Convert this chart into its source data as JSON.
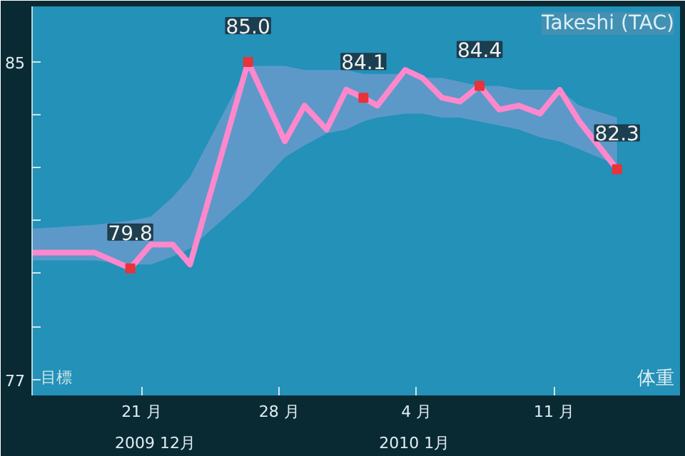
{
  "chart_data": {
    "type": "line",
    "title": "Takeshi (TAC)",
    "ylabel": "体重",
    "annotations": [
      "目標",
      "2009 12月",
      "2010 1月"
    ],
    "x": [
      "2009-12-15T10:00",
      "2009-12-18T14:00",
      "2009-12-20T10:00",
      "2009-12-21T11:00",
      "2009-12-22T14:00",
      "2009-12-23T11:00",
      "2009-12-26T10:00",
      "2009-12-28T07:00",
      "2009-12-29T07:00",
      "2009-12-30T10:00",
      "2009-12-31T10:00",
      "2010-01-01T07:00",
      "2010-01-02T00:00",
      "2010-01-03T10:00",
      "2010-01-04T07:00",
      "2010-01-05T07:00",
      "2010-01-06T05:00",
      "2010-01-07T05:00",
      "2010-01-08T05:00",
      "2010-01-09T05:00",
      "2010-01-10T07:00",
      "2010-01-11T07:00",
      "2010-01-12T07:00",
      "2010-01-14T05:00"
    ],
    "series": [
      {
        "color": "#ff88cc",
        "line_style": "solid",
        "values": [
          80.2,
          80.2,
          79.8,
          80.4,
          80.4,
          79.9,
          85.0,
          83.0,
          83.9,
          83.3,
          84.3,
          84.1,
          83.9,
          84.8,
          84.6,
          84.1,
          84.0,
          84.4,
          83.8,
          83.9,
          83.7,
          84.3,
          83.5,
          82.3
        ],
        "lower": [
          80.0,
          80.0,
          79.9,
          79.9,
          80.1,
          80.3,
          81.6,
          82.6,
          82.9,
          83.2,
          83.3,
          83.5,
          83.6,
          83.7,
          83.7,
          83.6,
          83.6,
          83.5,
          83.4,
          83.3,
          83.1,
          83.0,
          82.8,
          82.4
        ],
        "upper": [
          80.8,
          80.9,
          81.0,
          81.1,
          81.6,
          82.1,
          84.9,
          84.9,
          84.8,
          84.8,
          84.8,
          84.7,
          84.7,
          84.7,
          84.6,
          84.6,
          84.5,
          84.4,
          84.4,
          84.3,
          84.3,
          84.3,
          83.9,
          83.6
        ],
        "value_labels": [
          null,
          null,
          "79.8",
          null,
          null,
          null,
          "85.0",
          null,
          null,
          null,
          null,
          "84.1",
          null,
          null,
          null,
          null,
          null,
          "84.4",
          null,
          null,
          null,
          null,
          null,
          "82.3"
        ]
      }
    ],
    "xlim": [
      "2009-12-15T10:00",
      "2010-01-17T10:00"
    ],
    "xticks": [
      {
        "value": "2009-12-21",
        "label": "21 月"
      },
      {
        "value": "2009-12-28",
        "label": "28 月"
      },
      {
        "value": "2010-01-04",
        "label": "4 月"
      },
      {
        "value": "2010-01-11",
        "label": "11 月"
      }
    ],
    "ylim": [
      76.6,
      86.4
    ],
    "yticks": [
      85,
      {
        "value": 83.67,
        "label": null
      },
      {
        "value": 82.33,
        "label": null
      },
      {
        "value": 81,
        "label": null
      },
      {
        "value": 79.67,
        "label": null
      },
      {
        "value": 78.33,
        "label": null
      },
      77
    ],
    "grid": false
  }
}
